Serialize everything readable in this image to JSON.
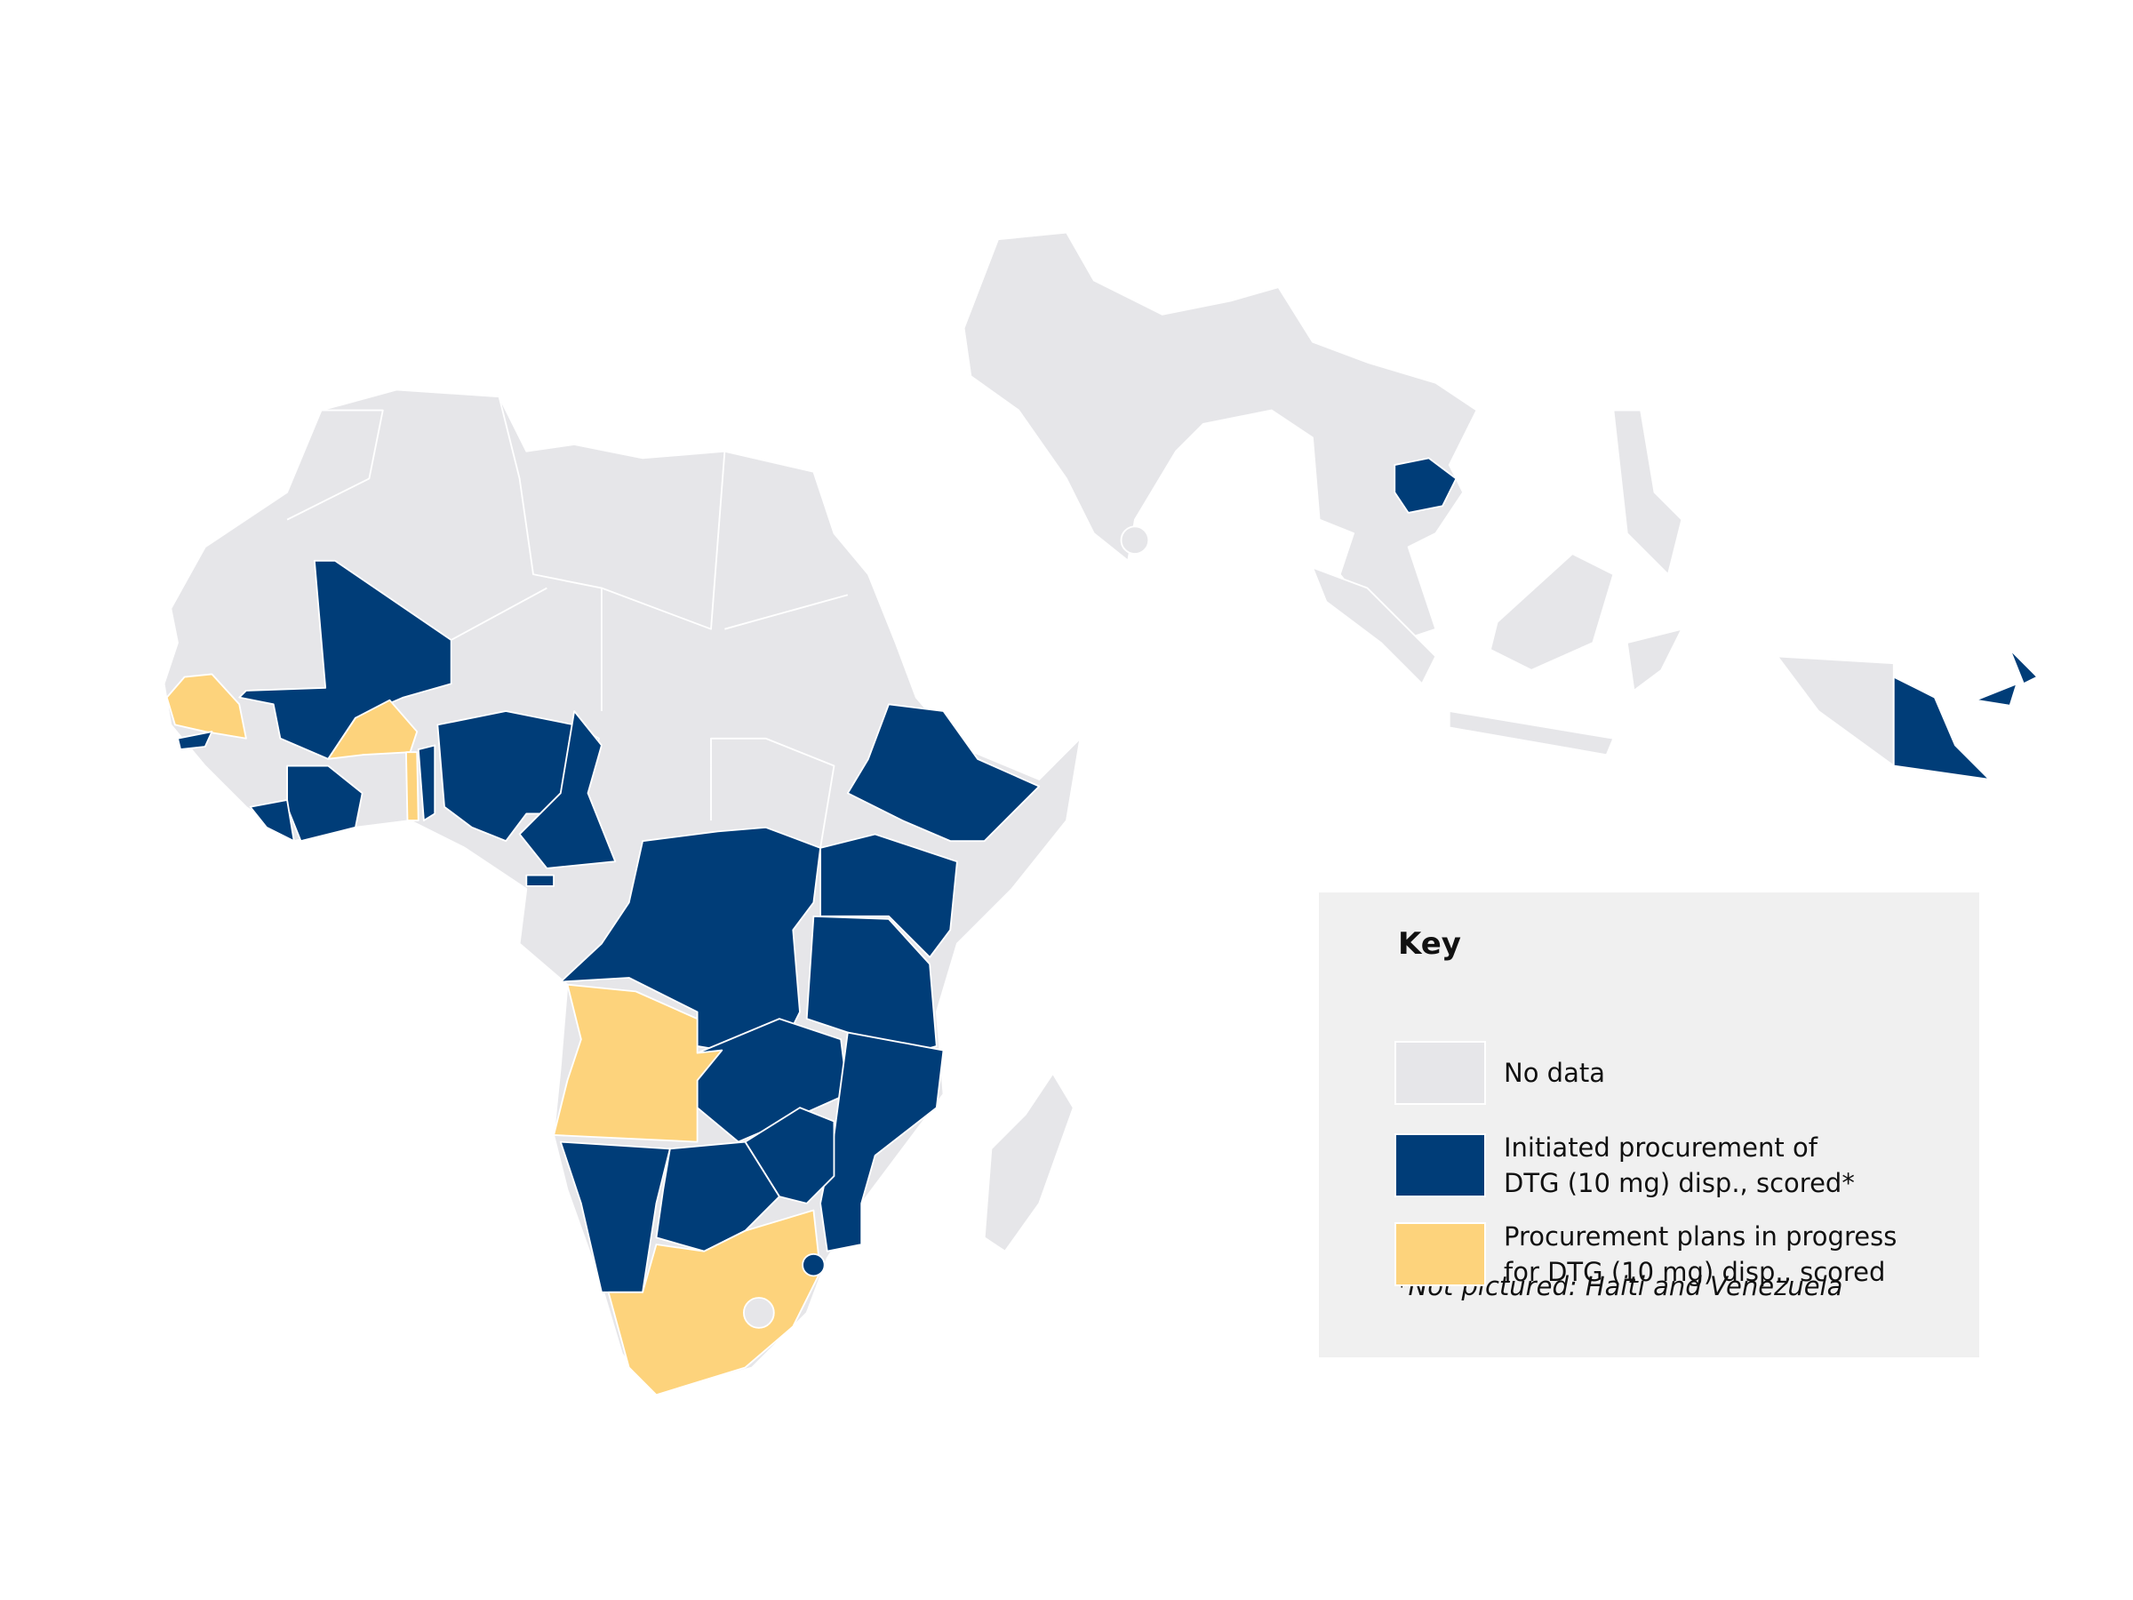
{
  "legend": {
    "title": "Key",
    "items": [
      {
        "lines": [
          "No data"
        ],
        "color": "#e6e6e9"
      },
      {
        "lines": [
          "Initiated procurement of",
          "DTG (10 mg) disp., scored*"
        ],
        "color": "#003d78"
      },
      {
        "lines": [
          "Procurement plans in progress",
          "for DTG (10 mg) disp., scored"
        ],
        "color": "#fdd37c"
      }
    ],
    "note": "*Not pictured: Haiti and Venezuela"
  }
}
